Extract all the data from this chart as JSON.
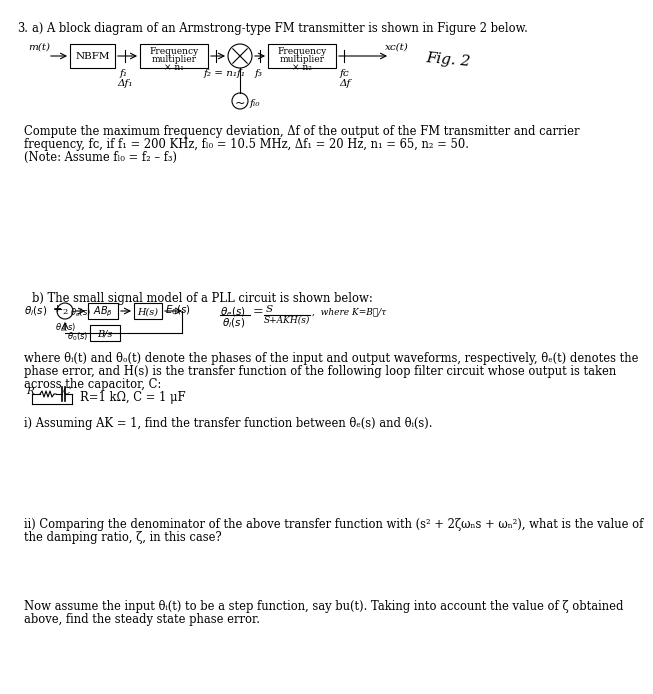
{
  "background_color": "#ffffff",
  "text_color": "#000000",
  "page_num": "3.",
  "title_a": "a) A block diagram of an Armstrong-type FM transmitter is shown in Figure 2 below.",
  "title_b": "b) The small signal model of a PLL circuit is shown below:",
  "line_a1": "Compute the maximum frequency deviation, Δf of the output of the FM transmitter and carrier",
  "line_a2": "frequency, fᴄ, if f₁ = 200 KHz, fₗ₀ = 10.5 MHz, Δf₁ = 20 Hz, n₁ = 65, n₂ = 50.",
  "line_a3": "(Note: Assume fₗ₀ = f₂ – f₃)",
  "pll_desc1": "where θᵢ(t) and θₒ(t) denote the phases of the input and output waveforms, respectively, θₑ(t) denotes the",
  "pll_desc2": "phase error, and H(s) is the transfer function of the following loop filter circuit whose output is taken",
  "pll_desc3": "across the capacitor, C:",
  "circuit_label": "R=1 kΩ, C = 1 μF",
  "part_i": "i) Assuming AK = 1, find the transfer function between θₑ(s) and θᵢ(s).",
  "part_ii1": "ii) Comparing the denominator of the above transfer function with (s² + 2ζωₙs + ωₙ²), what is the value of",
  "part_ii2": "the damping ratio, ζ, in this case?",
  "part_iii1": "Now assume the input θᵢ(t) to be a step function, say bu(t). Taking into account the value of ζ obtained",
  "part_iii2": "above, find the steady state phase error.",
  "fs": 8.3,
  "fs_small": 7.5,
  "fs_tiny": 6.5
}
